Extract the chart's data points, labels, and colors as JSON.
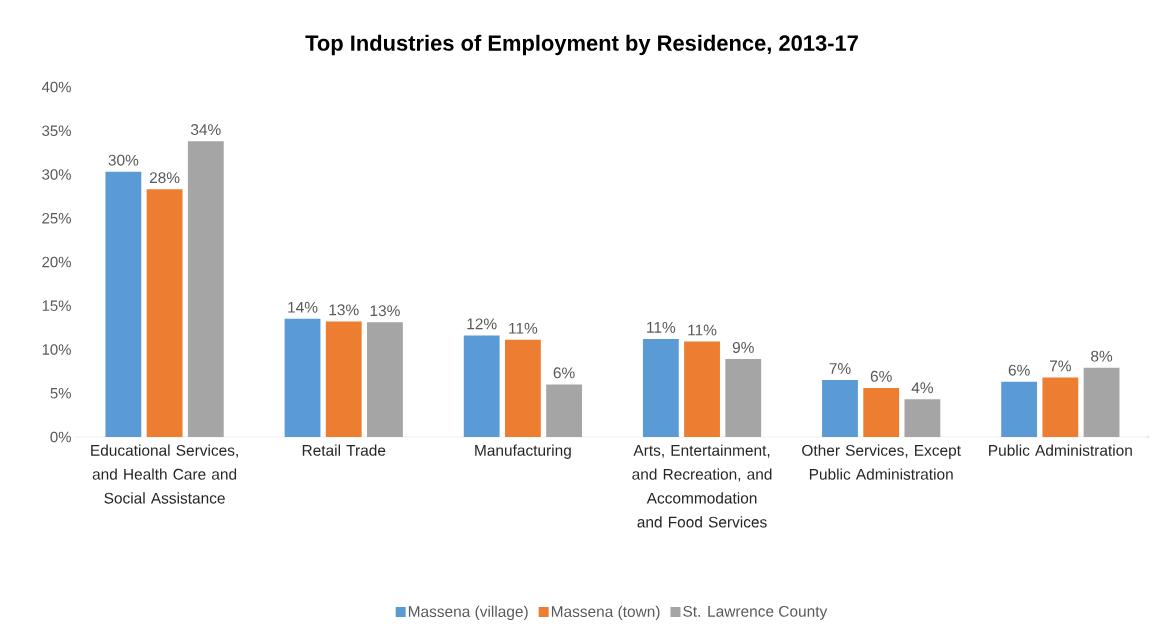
{
  "chart_data": {
    "type": "bar",
    "title": "Top Industries of Employment by Residence, 2013-17",
    "categories": [
      "Educational Services, and Health Care and Social  Assistance",
      "Retail Trade",
      "Manufacturing",
      "Arts, Entertainment, and Recreation, and Accommodation and Food Services",
      "Other Services, Except Public Administration",
      "Public Administration"
    ],
    "series": [
      {
        "name": "Massena (village)",
        "color": "#5b9bd5",
        "values": [
          30.3,
          13.5,
          11.6,
          11.2,
          6.5,
          6.3
        ],
        "value_labels": [
          "30%",
          "14%",
          "12%",
          "11%",
          "7%",
          "6%"
        ]
      },
      {
        "name": "Massena (town)",
        "color": "#ed7d31",
        "values": [
          28.3,
          13.2,
          11.1,
          10.9,
          5.6,
          6.8
        ],
        "value_labels": [
          "28%",
          "13%",
          "11%",
          "11%",
          "6%",
          "7%"
        ]
      },
      {
        "name": "St. Lawrence County",
        "color": "#a5a5a5",
        "values": [
          33.8,
          13.1,
          6.0,
          8.9,
          4.3,
          7.9
        ],
        "value_labels": [
          "34%",
          "13%",
          "6%",
          "9%",
          "4%",
          "8%"
        ]
      }
    ],
    "ylim": [
      0,
      40
    ],
    "yticks": [
      {
        "value": 0,
        "label": "0%"
      },
      {
        "value": 5,
        "label": "5%"
      },
      {
        "value": 10,
        "label": "10%"
      },
      {
        "value": 15,
        "label": "15%"
      },
      {
        "value": 20,
        "label": "20%"
      },
      {
        "value": 25,
        "label": "25%"
      },
      {
        "value": 30,
        "label": "30%"
      },
      {
        "value": 35,
        "label": "35%"
      },
      {
        "value": 40,
        "label": "40%"
      }
    ],
    "legend": "bottom"
  }
}
